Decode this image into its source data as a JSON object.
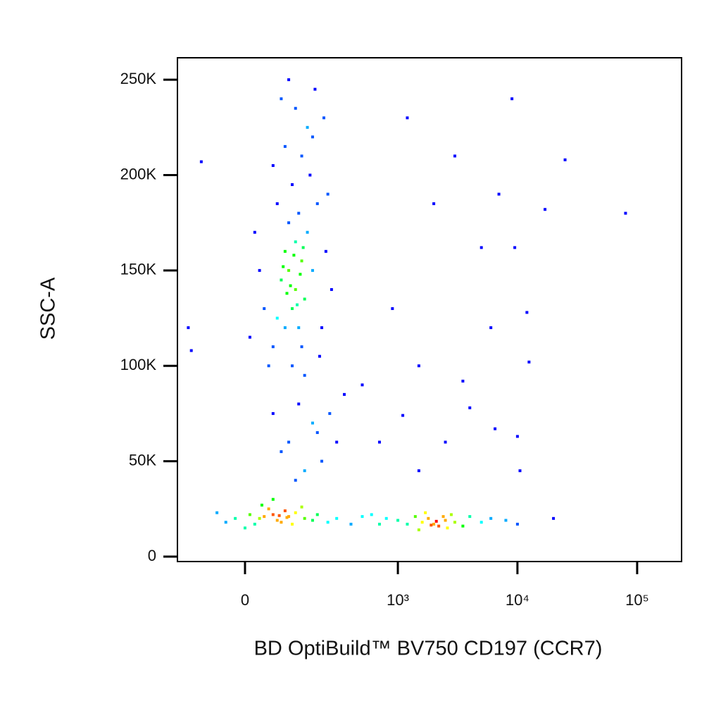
{
  "chart_data": {
    "type": "scatter",
    "x_label": "BD OptiBuild™ BV750 CD197 (CCR7)",
    "y_label": "SSC-A",
    "xscale": "biexponential",
    "xlim": [
      -180,
      235000
    ],
    "ylim": [
      -2600,
      261500
    ],
    "xticks": [
      0,
      {
        "value": 1000,
        "label": "10³"
      },
      {
        "value": 10000,
        "label": "10⁴"
      },
      {
        "value": 100000,
        "label": "10⁵"
      }
    ],
    "yticks": [
      0,
      {
        "value": 50000,
        "label": "50K"
      },
      {
        "value": 100000,
        "label": "100K"
      },
      {
        "value": 150000,
        "label": "150K"
      },
      {
        "value": 200000,
        "label": "200K"
      },
      {
        "value": 250000,
        "label": "250K"
      }
    ],
    "colormap": [
      "#0000ff",
      "#00ffff",
      "#00ff00",
      "#ffff00",
      "#ff0000"
    ],
    "x": [
      100,
      120,
      90,
      140,
      110,
      160,
      80,
      130,
      150,
      100,
      70,
      180,
      120,
      95,
      135,
      115,
      105,
      125,
      145,
      85,
      60,
      200,
      170,
      110,
      140,
      90,
      160,
      120,
      80,
      190,
      50,
      220,
      240,
      40,
      30,
      210,
      150,
      70,
      130,
      250,
      60,
      180,
      100,
      20,
      270,
      10,
      230,
      140,
      110,
      90,
      130,
      180,
      100,
      220,
      150,
      260,
      80,
      200,
      300,
      120,
      350,
      60,
      30,
      60,
      80,
      100,
      50,
      20,
      120,
      70,
      40,
      90,
      10,
      -20,
      -40,
      150,
      180,
      110,
      140,
      60,
      200,
      250,
      0,
      35,
      300,
      400,
      500,
      -60,
      75,
      95,
      1600,
      2000,
      1800,
      2200,
      2500,
      1400,
      1200,
      3000,
      2800,
      1000,
      800,
      3500,
      4000,
      5000,
      6000,
      2100,
      1900,
      2400,
      700,
      600,
      1500,
      2600,
      8000,
      10000,
      20000,
      1700,
      1200,
      9000,
      3000,
      25000,
      17000,
      80000,
      7000,
      2000,
      5000,
      9500,
      12000,
      6000,
      12500,
      4000,
      6500,
      10000,
      2500,
      1500,
      10500,
      700,
      500,
      900,
      1500,
      3500,
      1100,
      -140,
      -100,
      -130
    ],
    "values": [
      150000,
      140000,
      160000,
      155000,
      130000,
      170000,
      145000,
      120000,
      135000,
      175000,
      125000,
      150000,
      165000,
      138000,
      148000,
      158000,
      142000,
      132000,
      162000,
      152000,
      110000,
      185000,
      200000,
      195000,
      210000,
      215000,
      225000,
      235000,
      240000,
      245000,
      100000,
      120000,
      160000,
      130000,
      150000,
      105000,
      95000,
      185000,
      180000,
      190000,
      205000,
      220000,
      250000,
      170000,
      140000,
      115000,
      230000,
      110000,
      100000,
      120000,
      80000,
      70000,
      60000,
      50000,
      45000,
      75000,
      55000,
      65000,
      60000,
      40000,
      85000,
      75000,
      20000,
      22000,
      18000,
      21000,
      25000,
      17000,
      23000,
      19000,
      21000,
      24000,
      22000,
      20000,
      18000,
      20000,
      19000,
      17000,
      26000,
      30000,
      22000,
      18000,
      15000,
      27000,
      20000,
      17000,
      21000,
      23000,
      21500,
      20500,
      18000,
      17000,
      20000,
      16000,
      19000,
      21000,
      17000,
      18000,
      22000,
      19000,
      20000,
      16000,
      21000,
      18000,
      20000,
      18500,
      16500,
      21000,
      17000,
      22000,
      14000,
      15000,
      19000,
      17000,
      20000,
      23000,
      230000,
      240000,
      210000,
      208000,
      182000,
      180000,
      190000,
      185000,
      162000,
      162000,
      128000,
      120000,
      102000,
      78000,
      67000,
      63000,
      60000,
      45000,
      45000,
      60000,
      90000,
      130000,
      100000,
      92000,
      74000,
      120000,
      207000,
      108000
    ]
  }
}
